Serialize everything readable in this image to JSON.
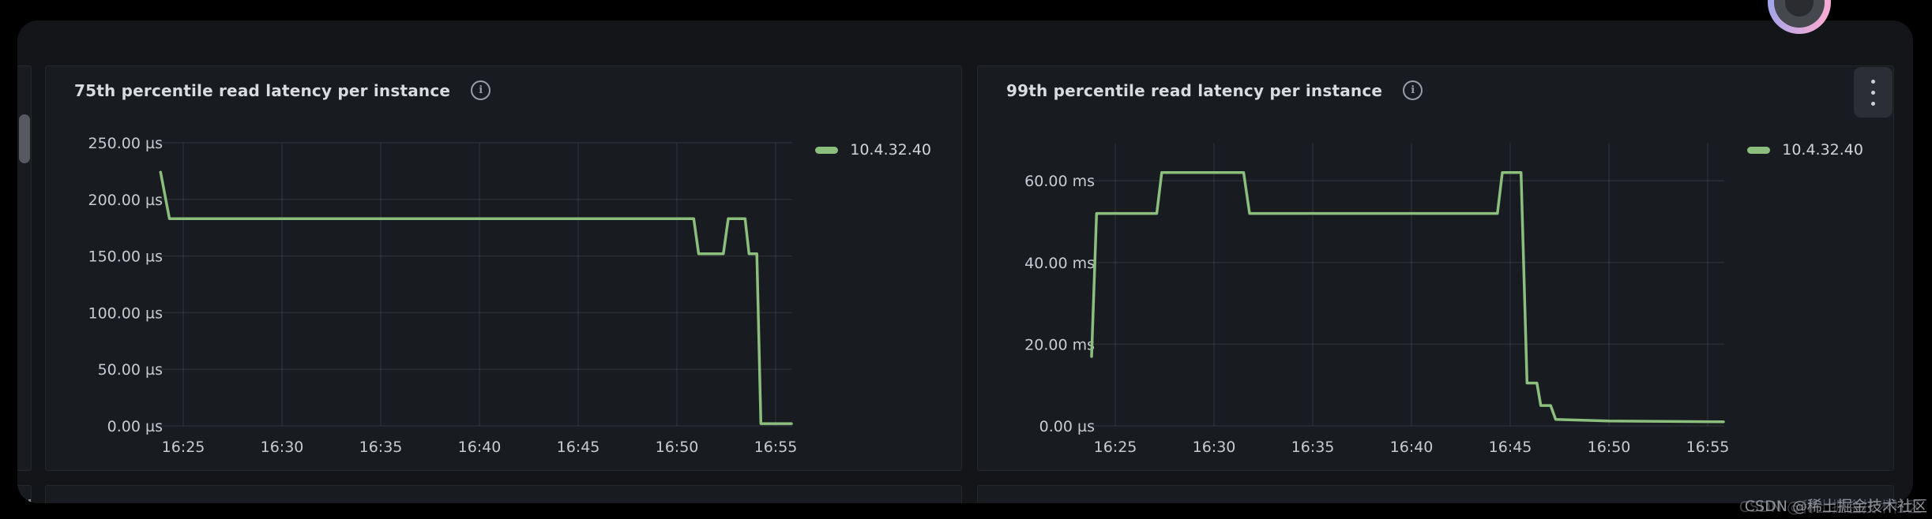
{
  "window": {
    "watermark_text": "CSDN @稀土掘金技术社区"
  },
  "panels": [
    {
      "title": "75th percentile read latency per instance",
      "legend": [
        {
          "label": "10.4.32.40",
          "color": "#8cbe7d"
        }
      ]
    },
    {
      "title": "99th percentile read latency per instance",
      "legend": [
        {
          "label": "10.4.32.40",
          "color": "#8cbe7d"
        }
      ]
    }
  ],
  "chart_data": [
    {
      "type": "line",
      "title": "75th percentile read latency per instance",
      "xlabel": "time",
      "ylabel": "latency",
      "unit": "µs",
      "legend_position": "top-right",
      "grid": true,
      "x_ticks": [
        {
          "v": 25,
          "label": "16:25"
        },
        {
          "v": 30,
          "label": "16:30"
        },
        {
          "v": 35,
          "label": "16:35"
        },
        {
          "v": 40,
          "label": "16:40"
        },
        {
          "v": 45,
          "label": "16:45"
        },
        {
          "v": 50,
          "label": "16:50"
        },
        {
          "v": 55,
          "label": "16:55"
        }
      ],
      "y_ticks": [
        {
          "v": 0,
          "label": "0.00 µs"
        },
        {
          "v": 50,
          "label": "50.00 µs"
        },
        {
          "v": 100,
          "label": "100.00 µs"
        },
        {
          "v": 150,
          "label": "150.00 µs"
        },
        {
          "v": 200,
          "label": "200.00 µs"
        },
        {
          "v": 250,
          "label": "250.00 µs"
        }
      ],
      "y_plot_max": 250,
      "x_range": [
        23.8,
        55.8
      ],
      "series": [
        {
          "name": "10.4.32.40",
          "color": "#8cbe7d",
          "points": [
            [
              23.85,
              224
            ],
            [
              24.3,
              183
            ],
            [
              50.85,
              183
            ],
            [
              51.1,
              152
            ],
            [
              52.35,
              152
            ],
            [
              52.6,
              183
            ],
            [
              53.45,
              183
            ],
            [
              53.65,
              152
            ],
            [
              54.05,
              152
            ],
            [
              54.25,
              2
            ],
            [
              55.8,
              2
            ]
          ]
        }
      ]
    },
    {
      "type": "line",
      "title": "99th percentile read latency per instance",
      "xlabel": "time",
      "ylabel": "latency",
      "unit": "ms",
      "legend_position": "top-right",
      "grid": true,
      "x_ticks": [
        {
          "v": 25,
          "label": "16:25"
        },
        {
          "v": 30,
          "label": "16:30"
        },
        {
          "v": 35,
          "label": "16:35"
        },
        {
          "v": 40,
          "label": "16:40"
        },
        {
          "v": 45,
          "label": "16:45"
        },
        {
          "v": 50,
          "label": "16:50"
        },
        {
          "v": 55,
          "label": "16:55"
        }
      ],
      "y_ticks": [
        {
          "v": 0,
          "label": "0.00 µs"
        },
        {
          "v": 20,
          "label": "20.00 ms"
        },
        {
          "v": 40,
          "label": "40.00 ms"
        },
        {
          "v": 60,
          "label": "60.00 ms"
        }
      ],
      "y_plot_max": 69.3,
      "x_range": [
        23.8,
        55.8
      ],
      "series": [
        {
          "name": "10.4.32.40",
          "color": "#8cbe7d",
          "points": [
            [
              23.8,
              17
            ],
            [
              24.05,
              52
            ],
            [
              27.1,
              52
            ],
            [
              27.35,
              62
            ],
            [
              31.5,
              62
            ],
            [
              31.8,
              52
            ],
            [
              44.35,
              52
            ],
            [
              44.6,
              62
            ],
            [
              45.55,
              62
            ],
            [
              45.85,
              10.5
            ],
            [
              46.35,
              10.5
            ],
            [
              46.55,
              5
            ],
            [
              47.05,
              5
            ],
            [
              47.3,
              1.6
            ],
            [
              50.0,
              1.2
            ],
            [
              55.8,
              1.0
            ]
          ]
        }
      ]
    }
  ]
}
